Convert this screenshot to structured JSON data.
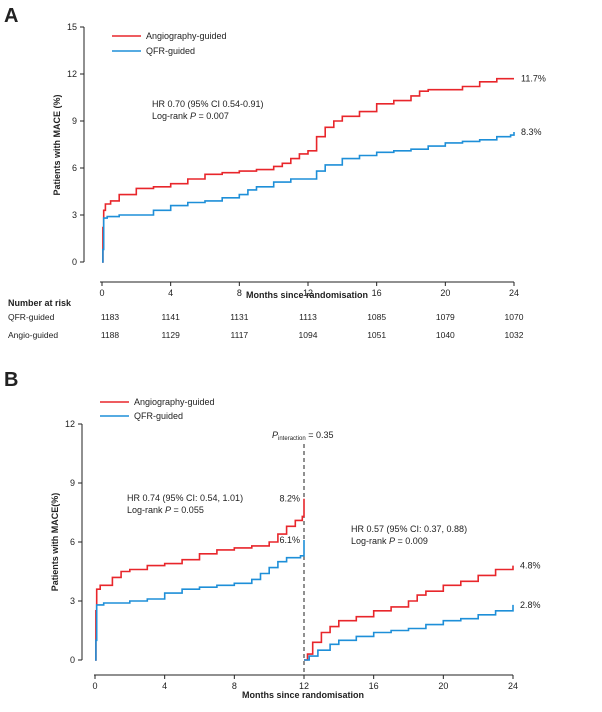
{
  "colors": {
    "angio": "#e8262b",
    "qfr": "#1e8fd8"
  },
  "panelA": {
    "letter": "A",
    "ylabel": "Patients with MACE (%)",
    "xlabel": "Months since randomisation",
    "legend": {
      "angio": "Angiography-guided",
      "qfr": "QFR-guided"
    },
    "annotation": {
      "line1": "HR 0.70 (95% CI 0.54-0.91)",
      "line2_prefix": "Log-rank ",
      "line2_p": "P",
      "line2_suffix": " = 0.007"
    },
    "risk_table": {
      "title": "Number at risk",
      "rows": [
        {
          "label": "QFR-guided",
          "values": [
            "1183",
            "1141",
            "1131",
            "1113",
            "1085",
            "1079",
            "1070"
          ]
        },
        {
          "label": "Angio-guided",
          "values": [
            "1188",
            "1129",
            "1117",
            "1094",
            "1051",
            "1040",
            "1032"
          ]
        }
      ]
    }
  },
  "panelB": {
    "letter": "B",
    "ylabel": "Patients with MACE(%)",
    "xlabel": "Months since randomisation",
    "legend": {
      "angio": "Angiography-guided",
      "qfr": "QFR-guided"
    },
    "interaction": {
      "p": "P",
      "sub": "interaction",
      "value": " = 0.35"
    },
    "annotation_left": {
      "line1": "HR 0.74 (95% CI: 0.54, 1.01)",
      "line2_prefix": "Log-rank ",
      "line2_p": "P",
      "line2_suffix": " = 0.055"
    },
    "annotation_right": {
      "line1": "HR 0.57 (95% CI: 0.37, 0.88)",
      "line2_prefix": "Log-rank ",
      "line2_p": "P",
      "line2_suffix": " = 0.009"
    }
  },
  "chart_data": [
    {
      "type": "line",
      "title": "",
      "xlabel": "Months since randomisation",
      "ylabel": "Patients with MACE (%)",
      "xlim": [
        0,
        24
      ],
      "ylim": [
        0,
        15
      ],
      "x_ticks": [
        0,
        4,
        8,
        12,
        16,
        20,
        24
      ],
      "y_ticks": [
        0,
        3,
        6,
        9,
        12,
        15
      ],
      "grid": false,
      "legend_position": "top-left",
      "series": [
        {
          "name": "Angiography-guided",
          "end_label": "11.7%",
          "points": [
            [
              0,
              0
            ],
            [
              0.05,
              2.2
            ],
            [
              0.1,
              3.3
            ],
            [
              0.2,
              3.7
            ],
            [
              0.5,
              3.9
            ],
            [
              1,
              4.3
            ],
            [
              2,
              4.7
            ],
            [
              3,
              4.8
            ],
            [
              4,
              5.0
            ],
            [
              5,
              5.3
            ],
            [
              6,
              5.6
            ],
            [
              7,
              5.7
            ],
            [
              8,
              5.8
            ],
            [
              9,
              5.9
            ],
            [
              10,
              6.1
            ],
            [
              10.5,
              6.3
            ],
            [
              11,
              6.6
            ],
            [
              11.5,
              6.9
            ],
            [
              12,
              7.1
            ],
            [
              12.5,
              8.0
            ],
            [
              13,
              8.6
            ],
            [
              13.5,
              9.0
            ],
            [
              14,
              9.3
            ],
            [
              15,
              9.6
            ],
            [
              16,
              10.1
            ],
            [
              17,
              10.3
            ],
            [
              18,
              10.6
            ],
            [
              18.5,
              10.9
            ],
            [
              19,
              11.0
            ],
            [
              20,
              11.0
            ],
            [
              21,
              11.2
            ],
            [
              22,
              11.5
            ],
            [
              23,
              11.7
            ],
            [
              24,
              11.7
            ]
          ]
        },
        {
          "name": "QFR-guided",
          "end_label": "8.3%",
          "points": [
            [
              0,
              0
            ],
            [
              0.05,
              0.8
            ],
            [
              0.1,
              2.8
            ],
            [
              0.3,
              2.9
            ],
            [
              1,
              3.0
            ],
            [
              2,
              3.0
            ],
            [
              3,
              3.3
            ],
            [
              4,
              3.6
            ],
            [
              5,
              3.8
            ],
            [
              6,
              3.9
            ],
            [
              7,
              4.1
            ],
            [
              8,
              4.3
            ],
            [
              8.5,
              4.6
            ],
            [
              9,
              4.8
            ],
            [
              10,
              5.1
            ],
            [
              11,
              5.3
            ],
            [
              12,
              5.3
            ],
            [
              12.5,
              5.8
            ],
            [
              13,
              6.2
            ],
            [
              14,
              6.6
            ],
            [
              15,
              6.8
            ],
            [
              16,
              7.0
            ],
            [
              17,
              7.1
            ],
            [
              18,
              7.2
            ],
            [
              19,
              7.4
            ],
            [
              20,
              7.6
            ],
            [
              21,
              7.7
            ],
            [
              22,
              7.8
            ],
            [
              23,
              8.0
            ],
            [
              23.8,
              8.1
            ],
            [
              24,
              8.3
            ]
          ]
        }
      ]
    },
    {
      "type": "line",
      "title": "",
      "xlabel": "Months since randomisation",
      "ylabel": "Patients with MACE(%)",
      "xlim": [
        0,
        24
      ],
      "ylim": [
        0,
        12
      ],
      "x_ticks": [
        0,
        4,
        8,
        12,
        16,
        20,
        24
      ],
      "y_ticks": [
        0,
        3,
        6,
        9,
        12
      ],
      "grid": false,
      "legend_position": "top-left",
      "landmark_x": 12,
      "series": [
        {
          "name": "Angiography-guided",
          "segment": "0-12",
          "end_label": "8.2%",
          "points": [
            [
              0,
              0
            ],
            [
              0.05,
              2.5
            ],
            [
              0.1,
              3.6
            ],
            [
              0.3,
              3.8
            ],
            [
              1,
              4.2
            ],
            [
              1.5,
              4.5
            ],
            [
              2,
              4.6
            ],
            [
              3,
              4.8
            ],
            [
              4,
              4.9
            ],
            [
              5,
              5.1
            ],
            [
              6,
              5.4
            ],
            [
              7,
              5.6
            ],
            [
              8,
              5.7
            ],
            [
              9,
              5.8
            ],
            [
              10,
              6.0
            ],
            [
              10.5,
              6.4
            ],
            [
              11,
              6.8
            ],
            [
              11.5,
              7.1
            ],
            [
              11.9,
              7.3
            ],
            [
              12,
              8.2
            ]
          ]
        },
        {
          "name": "QFR-guided",
          "segment": "0-12",
          "end_label": "6.1%",
          "points": [
            [
              0,
              0
            ],
            [
              0.05,
              1.0
            ],
            [
              0.1,
              2.8
            ],
            [
              0.5,
              2.9
            ],
            [
              1,
              2.9
            ],
            [
              2,
              3.0
            ],
            [
              3,
              3.1
            ],
            [
              4,
              3.4
            ],
            [
              5,
              3.6
            ],
            [
              6,
              3.7
            ],
            [
              7,
              3.8
            ],
            [
              8,
              3.9
            ],
            [
              9,
              4.1
            ],
            [
              9.5,
              4.4
            ],
            [
              10,
              4.7
            ],
            [
              10.5,
              5.0
            ],
            [
              11,
              5.2
            ],
            [
              11.8,
              5.3
            ],
            [
              12,
              6.1
            ]
          ]
        },
        {
          "name": "Angiography-guided",
          "segment": "12-24",
          "end_label": "4.8%",
          "points": [
            [
              12,
              0
            ],
            [
              12.2,
              0.3
            ],
            [
              12.5,
              0.9
            ],
            [
              13,
              1.4
            ],
            [
              13.5,
              1.7
            ],
            [
              14,
              2.0
            ],
            [
              15,
              2.2
            ],
            [
              16,
              2.5
            ],
            [
              17,
              2.7
            ],
            [
              18,
              3.0
            ],
            [
              18.5,
              3.3
            ],
            [
              19,
              3.5
            ],
            [
              20,
              3.8
            ],
            [
              21,
              4.0
            ],
            [
              22,
              4.3
            ],
            [
              23,
              4.6
            ],
            [
              24,
              4.8
            ]
          ]
        },
        {
          "name": "QFR-guided",
          "segment": "12-24",
          "end_label": "2.8%",
          "points": [
            [
              12,
              0
            ],
            [
              12.3,
              0.2
            ],
            [
              12.8,
              0.5
            ],
            [
              13.5,
              0.8
            ],
            [
              14,
              1.0
            ],
            [
              15,
              1.2
            ],
            [
              16,
              1.4
            ],
            [
              17,
              1.5
            ],
            [
              18,
              1.6
            ],
            [
              19,
              1.8
            ],
            [
              20,
              2.0
            ],
            [
              21,
              2.1
            ],
            [
              22,
              2.3
            ],
            [
              23,
              2.5
            ],
            [
              24,
              2.8
            ]
          ]
        }
      ]
    }
  ]
}
